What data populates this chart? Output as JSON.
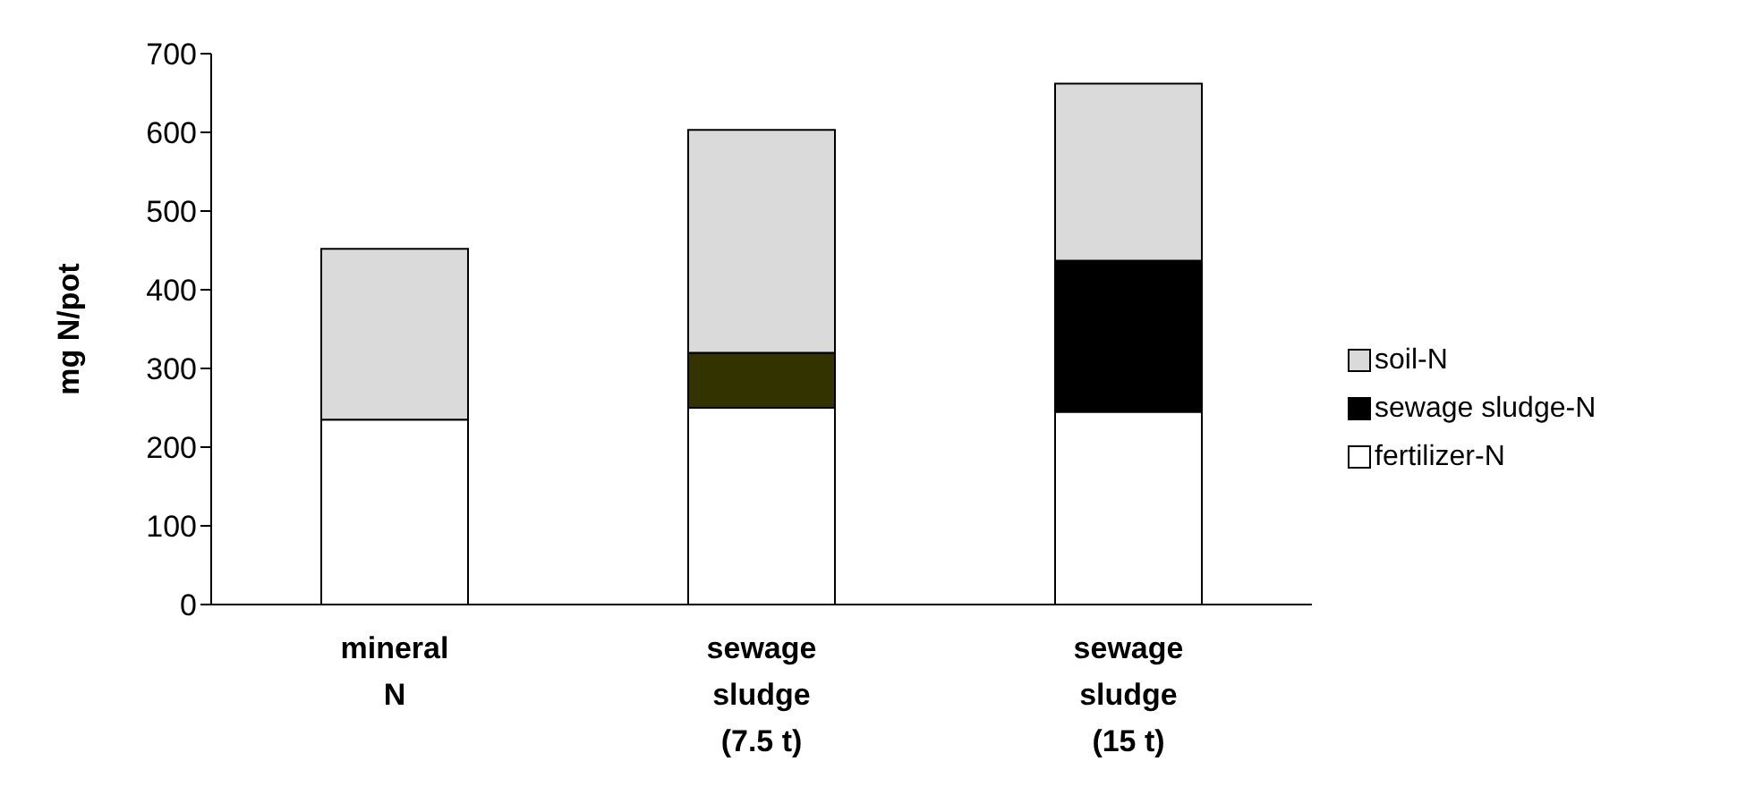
{
  "chart_data": {
    "type": "bar",
    "stacked": true,
    "ylabel": "mg N/pot",
    "categories": [
      "mineral N",
      "sewage sludge (7.5 t)",
      "sewage sludge (15 t)"
    ],
    "series": [
      {
        "name": "fertilizer-N",
        "color": "#ffffff",
        "values": [
          235,
          250,
          245
        ]
      },
      {
        "name": "sewage sludge-N",
        "color": "#000000",
        "colors": [
          "#000000",
          "#333300",
          "#000000"
        ],
        "values": [
          0,
          70,
          192
        ]
      },
      {
        "name": "soil-N",
        "color": "#dadada",
        "values": [
          217,
          283,
          225
        ]
      }
    ],
    "ylim": [
      0,
      700
    ],
    "yticks": [
      0,
      100,
      200,
      300,
      400,
      500,
      600,
      700
    ],
    "grid": false,
    "legend": "right"
  }
}
